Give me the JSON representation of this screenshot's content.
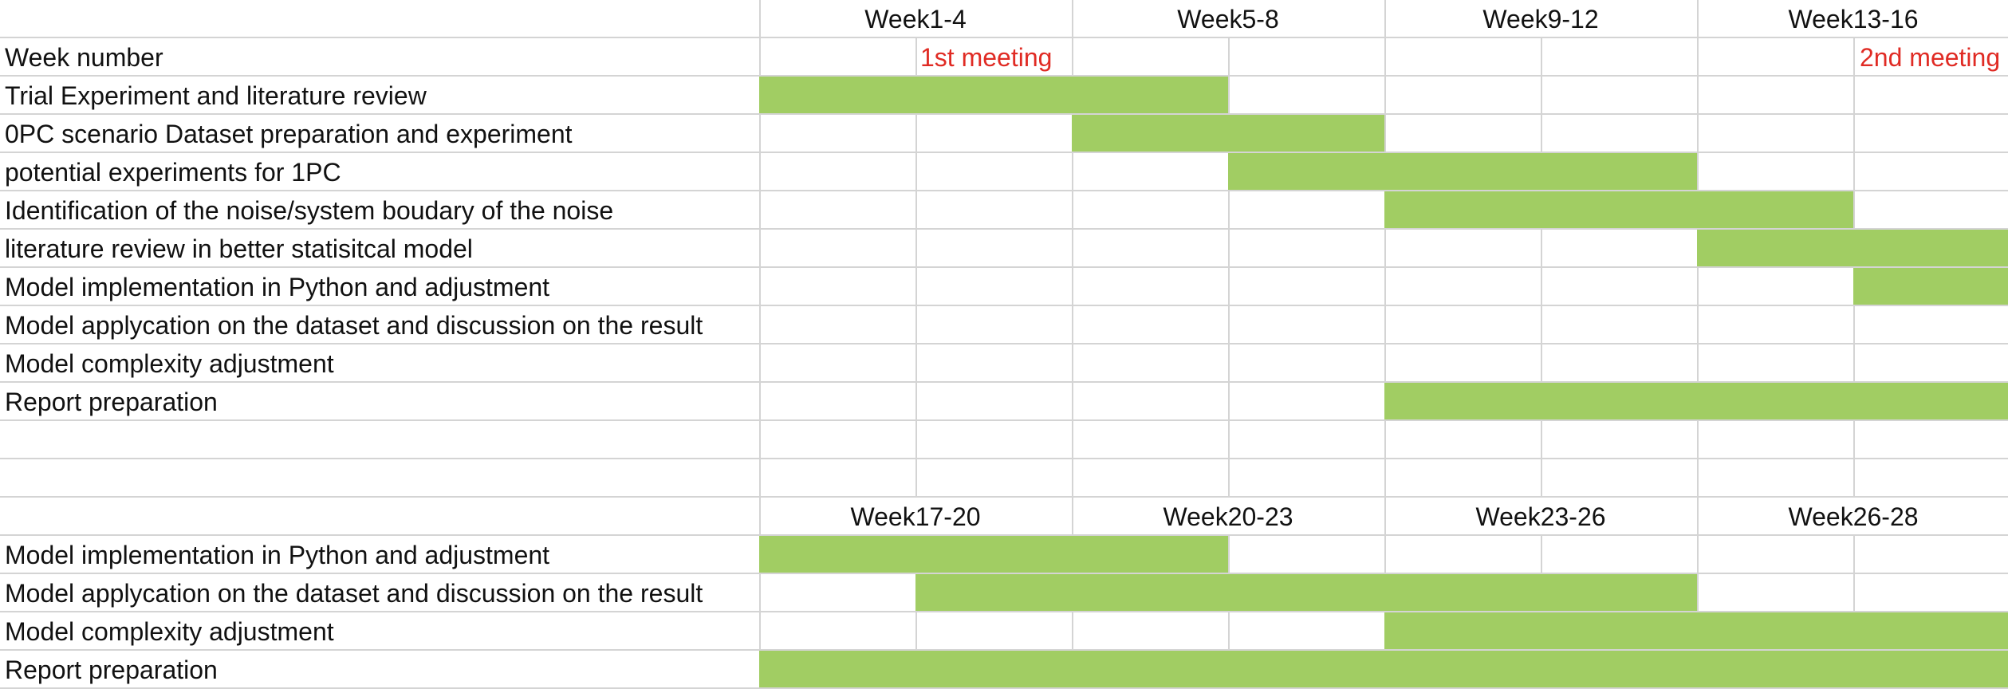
{
  "colors": {
    "bar": "#a1cd63",
    "grid": "#d4d4d4",
    "meeting": "#e02b24"
  },
  "headers_top": [
    "Week1-4",
    "Week5-8",
    "Week9-12",
    "Week13-16"
  ],
  "headers_bottom": [
    "Week17-20",
    "Week20-23",
    "Week23-26",
    "Week26-28"
  ],
  "row_label_header": "Week number",
  "meetings": [
    "1st meeting",
    "2nd meeting"
  ],
  "tasks_top": [
    "Trial Experiment and literature review",
    "0PC scenario Dataset preparation and experiment",
    "potential experiments for 1PC",
    "Identification of the noise/system boudary of the noise",
    "literature review in better statisitcal model",
    "Model implementation in Python and adjustment",
    "Model applycation on the dataset and discussion on the result",
    "Model complexity adjustment",
    "Report preparation"
  ],
  "tasks_bottom": [
    "Model implementation in Python and adjustment",
    "Model applycation on the dataset and discussion on the result",
    "Model complexity adjustment",
    "Report preparation"
  ],
  "schedule_top": [
    {
      "start": 0,
      "end": 3
    },
    {
      "start": 2,
      "end": 4
    },
    {
      "start": 3,
      "end": 6
    },
    {
      "start": 4,
      "end": 7
    },
    {
      "start": 6,
      "end": 8
    },
    {
      "start": 7,
      "end": 8
    },
    null,
    null,
    {
      "start": 4,
      "end": 8
    }
  ],
  "schedule_bottom": [
    {
      "start": 0,
      "end": 3
    },
    {
      "start": 1,
      "end": 6
    },
    {
      "start": 4,
      "end": 8
    },
    {
      "start": 0,
      "end": 8
    }
  ]
}
